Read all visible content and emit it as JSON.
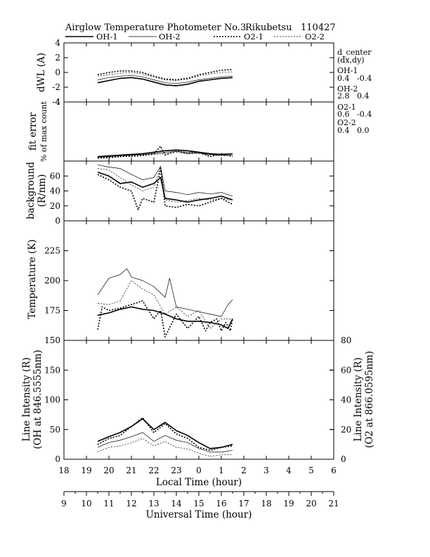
{
  "header": {
    "title": "Airglow Temperature Photometer No.3",
    "station": "Rikubetsu",
    "date": "110427"
  },
  "legend": [
    {
      "name": "OH-1",
      "style": "solid-thick"
    },
    {
      "name": "OH-2",
      "style": "solid-thin"
    },
    {
      "name": "O2-1",
      "style": "dotted-thick"
    },
    {
      "name": "O2-2",
      "style": "dotted-thin"
    }
  ],
  "side_notes": {
    "title": "d_center",
    "subtitle": "(dx,dy)",
    "oh1_label": "OH-1",
    "oh1_vals": "0.4   -0.4",
    "oh2_label": "OH-2",
    "oh2_vals": "2.8   0.4",
    "o21_label": "O2-1",
    "o21_vals": "0.6   -0.4",
    "o22_label": "O2-2",
    "o22_vals": "0.4   0.0"
  },
  "chart_data": {
    "type": "line",
    "xaxis": {
      "label": "Local Time (hour)",
      "range": [
        18,
        30
      ],
      "ticks": [
        "18",
        "19",
        "20",
        "21",
        "22",
        "23",
        "0",
        "1",
        "2",
        "3",
        "4",
        "5",
        "6"
      ]
    },
    "xaxis2": {
      "label": "Universal Time (hour)",
      "range": [
        9,
        21
      ],
      "ticks": [
        "9",
        "10",
        "11",
        "12",
        "13",
        "14",
        "15",
        "16",
        "17",
        "18",
        "19",
        "20",
        "21"
      ]
    },
    "panels": [
      {
        "id": "dwl",
        "ylabel": "dWL (A)",
        "ylim": [
          -4,
          4
        ],
        "yticks": [
          "-4",
          "-2",
          "0",
          "2",
          "4"
        ],
        "series": [
          {
            "name": "OH-1",
            "x": [
              19.5,
              20.0,
              20.5,
              21.0,
              21.5,
              22.0,
              22.5,
              23.0,
              23.5,
              24.0,
              24.5,
              25.0,
              25.5
            ],
            "y": [
              -1.4,
              -1.1,
              -0.8,
              -0.7,
              -0.9,
              -1.3,
              -1.7,
              -1.8,
              -1.6,
              -1.2,
              -1.0,
              -0.8,
              -0.7
            ]
          },
          {
            "name": "OH-2",
            "x": [
              19.5,
              20.0,
              20.5,
              21.0,
              21.5,
              22.0,
              22.5,
              23.0,
              23.5,
              24.0,
              24.5,
              25.0,
              25.5
            ],
            "y": [
              -1.0,
              -0.7,
              -0.5,
              -0.4,
              -0.6,
              -1.0,
              -1.4,
              -1.5,
              -1.3,
              -1.0,
              -0.8,
              -0.6,
              -0.5
            ]
          },
          {
            "name": "O2-1",
            "x": [
              19.5,
              20.0,
              20.5,
              21.0,
              21.5,
              22.0,
              22.5,
              23.0,
              23.5,
              24.0,
              24.5,
              25.0,
              25.5
            ],
            "y": [
              -0.3,
              0.0,
              0.2,
              0.2,
              0.0,
              -0.5,
              -0.9,
              -1.0,
              -0.8,
              -0.3,
              0.0,
              0.3,
              0.4
            ]
          },
          {
            "name": "O2-2",
            "x": [
              19.5,
              20.0,
              20.5,
              21.0,
              21.5,
              22.0,
              22.5,
              23.0,
              23.5,
              24.0,
              24.5,
              25.0,
              25.5
            ],
            "y": [
              -0.5,
              -0.3,
              -0.1,
              0.0,
              -0.2,
              -0.6,
              -1.0,
              -1.1,
              -0.9,
              -0.5,
              -0.2,
              0.0,
              0.1
            ]
          }
        ]
      },
      {
        "id": "fit",
        "ylabel": "fit error",
        "ylabel2": "% of max count",
        "ylim": [
          0,
          4
        ],
        "yticks": [
          "4"
        ],
        "series": [
          {
            "name": "OH-1",
            "x": [
              19.5,
              20.0,
              20.5,
              21.0,
              21.5,
              22.0,
              22.5,
              23.0,
              23.5,
              24.0,
              24.5,
              25.0,
              25.5
            ],
            "y": [
              0.3,
              0.35,
              0.4,
              0.45,
              0.5,
              0.6,
              0.7,
              0.75,
              0.7,
              0.6,
              0.5,
              0.45,
              0.5
            ]
          },
          {
            "name": "OH-2",
            "x": [
              19.5,
              20.0,
              20.5,
              21.0,
              21.5,
              22.0,
              22.5,
              23.0,
              23.5,
              24.0,
              24.5,
              25.0,
              25.5
            ],
            "y": [
              0.25,
              0.3,
              0.35,
              0.4,
              0.45,
              0.5,
              0.6,
              0.65,
              0.6,
              0.55,
              0.45,
              0.4,
              0.4
            ]
          },
          {
            "name": "O2-1",
            "x": [
              19.5,
              20.0,
              20.5,
              21.0,
              21.5,
              22.0,
              22.3,
              22.5,
              23.0,
              23.5,
              24.0,
              24.5,
              25.0,
              25.5
            ],
            "y": [
              0.2,
              0.25,
              0.3,
              0.35,
              0.4,
              0.5,
              1.0,
              0.4,
              0.7,
              0.5,
              0.6,
              0.3,
              0.5,
              0.3
            ]
          },
          {
            "name": "O2-2",
            "x": [
              19.5,
              20.0,
              20.5,
              21.0,
              21.5,
              22.0,
              22.5,
              23.0,
              23.5,
              24.0,
              24.5,
              25.0,
              25.5
            ],
            "y": [
              0.2,
              0.2,
              0.3,
              0.3,
              0.35,
              0.45,
              0.5,
              0.6,
              0.5,
              0.5,
              0.4,
              0.35,
              0.4
            ]
          }
        ]
      },
      {
        "id": "bg",
        "ylabel": "background",
        "ylabel2": "(R/nm)",
        "ylim": [
          0,
          80
        ],
        "yticks": [
          "0",
          "20",
          "40",
          "60"
        ],
        "series": [
          {
            "name": "OH-1",
            "x": [
              19.5,
              20.0,
              20.5,
              21.0,
              21.5,
              22.0,
              22.3,
              22.5,
              23.0,
              23.5,
              24.0,
              24.5,
              25.0,
              25.5
            ],
            "y": [
              65,
              60,
              50,
              52,
              45,
              50,
              58,
              30,
              28,
              25,
              28,
              30,
              33,
              28
            ]
          },
          {
            "name": "OH-2",
            "x": [
              19.5,
              20.0,
              20.5,
              21.0,
              21.5,
              22.0,
              22.3,
              22.5,
              23.0,
              23.5,
              24.0,
              24.5,
              25.0,
              25.5
            ],
            "y": [
              75,
              72,
              70,
              62,
              55,
              58,
              73,
              40,
              38,
              35,
              38,
              36,
              38,
              33
            ]
          },
          {
            "name": "O2-1",
            "x": [
              19.5,
              20.0,
              20.5,
              21.0,
              21.3,
              21.5,
              22.0,
              22.3,
              22.5,
              23.0,
              23.5,
              24.0,
              24.5,
              25.0,
              25.5
            ],
            "y": [
              62,
              55,
              45,
              40,
              15,
              30,
              25,
              70,
              20,
              18,
              22,
              20,
              25,
              30,
              22
            ]
          },
          {
            "name": "O2-2",
            "x": [
              19.5,
              20.0,
              20.5,
              21.0,
              21.5,
              22.0,
              22.3,
              22.5,
              23.0,
              23.5,
              24.0,
              24.5,
              25.0,
              25.5
            ],
            "y": [
              70,
              68,
              58,
              48,
              40,
              45,
              72,
              28,
              25,
              27,
              30,
              28,
              30,
              28
            ]
          }
        ]
      },
      {
        "id": "temp",
        "ylabel": "Temperature (K)",
        "ylim": [
          150,
          250
        ],
        "yticks": [
          "150",
          "175",
          "200",
          "225"
        ],
        "series": [
          {
            "name": "OH-1",
            "x": [
              19.5,
              20.0,
              20.5,
              21.0,
              21.5,
              22.0,
              22.5,
              23.0,
              23.5,
              24.0,
              24.5,
              25.0,
              25.3,
              25.5
            ],
            "y": [
              171,
              173,
              176,
              178,
              176,
              175,
              172,
              168,
              166,
              166,
              165,
              163,
              160,
              168
            ]
          },
          {
            "name": "OH-2",
            "x": [
              19.5,
              20.0,
              20.5,
              20.8,
              21.0,
              21.5,
              22.0,
              22.5,
              22.7,
              23.0,
              23.5,
              24.0,
              24.5,
              25.0,
              25.3,
              25.5
            ],
            "y": [
              188,
              202,
              205,
              210,
              203,
              200,
              195,
              186,
              202,
              178,
              176,
              174,
              172,
              170,
              180,
              184
            ]
          },
          {
            "name": "O2-1",
            "x": [
              19.5,
              19.7,
              20.0,
              20.5,
              21.0,
              21.5,
              22.0,
              22.3,
              22.5,
              23.0,
              23.5,
              24.0,
              24.3,
              24.5,
              24.8,
              25.0,
              25.2,
              25.4,
              25.5
            ],
            "y": [
              159,
              178,
              175,
              177,
              180,
              183,
              168,
              175,
              153,
              172,
              160,
              170,
              158,
              165,
              168,
              158,
              165,
              158,
              168
            ]
          },
          {
            "name": "O2-2",
            "x": [
              19.5,
              20.0,
              20.5,
              21.0,
              21.5,
              22.0,
              22.5,
              23.0,
              23.5,
              24.0,
              24.5,
              25.0,
              25.5
            ],
            "y": [
              181,
              180,
              183,
              200,
              193,
              188,
              172,
              178,
              170,
              175,
              160,
              168,
              168
            ]
          }
        ]
      },
      {
        "id": "int",
        "ylabel": "Line Intensity (R)",
        "ylabel2": "(OH at 846.5555nm)",
        "ylabel_right": "Line Intensity (R)",
        "ylabel_right2": "(O2 at 866.0595nm)",
        "ylim": [
          0,
          200
        ],
        "yticks": [
          "0",
          "50",
          "100",
          "150"
        ],
        "ylim_right": [
          0,
          80
        ],
        "yticks_right": [
          "0",
          "20",
          "40",
          "60",
          "80"
        ],
        "series": [
          {
            "name": "OH-1",
            "axis": "left",
            "x": [
              19.5,
              20.0,
              20.5,
              21.0,
              21.5,
              22.0,
              22.5,
              23.0,
              23.5,
              24.0,
              24.5,
              25.0,
              25.5
            ],
            "y": [
              30,
              38,
              45,
              55,
              68,
              50,
              62,
              48,
              40,
              28,
              18,
              20,
              25
            ]
          },
          {
            "name": "OH-2",
            "axis": "left",
            "x": [
              19.5,
              20.0,
              20.5,
              21.0,
              21.5,
              22.0,
              22.5,
              23.0,
              23.5,
              24.0,
              24.5,
              25.0,
              25.5
            ],
            "y": [
              20,
              28,
              32,
              38,
              45,
              30,
              40,
              32,
              28,
              18,
              12,
              12,
              15
            ]
          },
          {
            "name": "O2-1",
            "axis": "right",
            "x": [
              19.5,
              20.0,
              20.5,
              21.0,
              21.5,
              22.0,
              22.5,
              23.0,
              23.5,
              24.0,
              24.5,
              25.0,
              25.5
            ],
            "y": [
              10,
              14,
              16,
              22,
              28,
              18,
              24,
              17,
              14,
              8,
              6,
              8,
              9
            ]
          },
          {
            "name": "O2-2",
            "axis": "right",
            "x": [
              19.5,
              20.0,
              20.5,
              21.0,
              21.5,
              22.0,
              22.5,
              23.0,
              23.5,
              24.0,
              24.5,
              25.0,
              25.5
            ],
            "y": [
              5,
              8,
              9,
              11,
              14,
              9,
              12,
              8,
              7,
              4,
              2,
              3,
              3
            ]
          }
        ]
      }
    ]
  }
}
